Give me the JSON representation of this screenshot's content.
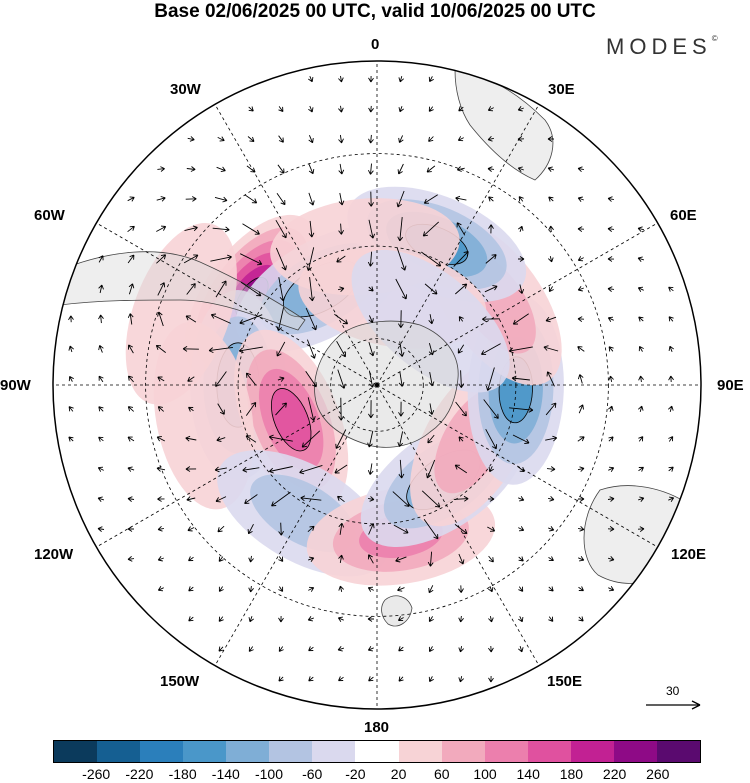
{
  "title": "Base 02/06/2025 00 UTC, valid 10/06/2025 00 UTC",
  "brand": "MODES",
  "brand_mark": "©",
  "longitude_labels": {
    "lon_0": "0",
    "lon_30e": "30E",
    "lon_60e": "60E",
    "lon_90e": "90E",
    "lon_120e": "120E",
    "lon_150e": "150E",
    "lon_180": "180",
    "lon_150w": "150W",
    "lon_120w": "120W",
    "lon_90w": "90W",
    "lon_60w": "60W",
    "lon_30w": "30W"
  },
  "reference_vector": "30",
  "colorbar": {
    "ticks": [
      "-260",
      "-220",
      "-180",
      "-140",
      "-100",
      "-60",
      "-20",
      "20",
      "60",
      "100",
      "140",
      "180",
      "220",
      "260"
    ],
    "colors": [
      "#0b3a5c",
      "#155f92",
      "#2b7fbb",
      "#4a97c9",
      "#7faed6",
      "#b3c4e2",
      "#dad9ee",
      "#ffffff",
      "#f7d3d6",
      "#f2aabd",
      "#ec7fad",
      "#e0519f",
      "#c22193",
      "#8e0a86",
      "#5a0a6f"
    ]
  },
  "anomaly_centers": [
    {
      "lon": -55,
      "colat": 33,
      "value": 240
    },
    {
      "lon": -30,
      "colat": 24,
      "value": -150
    },
    {
      "lon": -90,
      "colat": 30,
      "value": -140
    },
    {
      "lon": -112,
      "colat": 20,
      "value": 170
    },
    {
      "lon": -100,
      "colat": 38,
      "value": 60
    },
    {
      "lon": -150,
      "colat": 32,
      "value": -110
    },
    {
      "lon": 171,
      "colat": 33,
      "value": 120
    },
    {
      "lon": 145,
      "colat": 25,
      "value": -140
    },
    {
      "lon": 120,
      "colat": 24,
      "value": 110
    },
    {
      "lon": 92,
      "colat": 30,
      "value": -180
    },
    {
      "lon": 55,
      "colat": 31,
      "value": 110
    },
    {
      "lon": 23,
      "colat": 33,
      "value": -160
    },
    {
      "lon": 10,
      "colat": 19,
      "value": 60
    },
    {
      "lon": -5,
      "colat": 30,
      "value": 50
    },
    {
      "lon": 40,
      "colat": 18,
      "value": -40
    },
    {
      "lon": -70,
      "colat": 45,
      "value": 50
    }
  ]
}
